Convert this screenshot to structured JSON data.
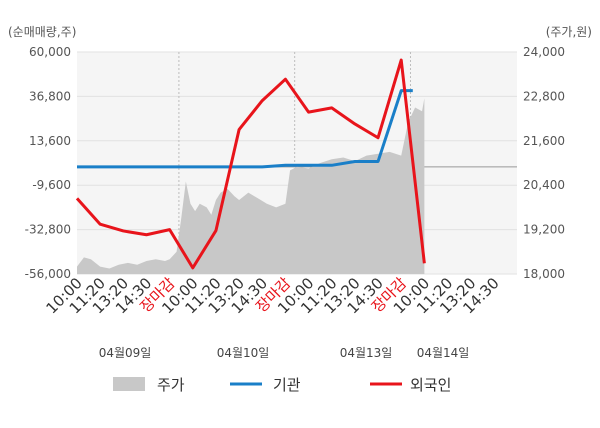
{
  "chart_data": {
    "type": "line",
    "left_axis": {
      "unit_label": "(순매매량,주)",
      "ticks": [
        "60,000",
        "36,800",
        "13,600",
        "-9,600",
        "-32,800",
        "-56,000"
      ],
      "range": [
        -56000,
        60000
      ]
    },
    "right_axis": {
      "unit_label": "(주가,원)",
      "ticks": [
        "24,000",
        "22,800",
        "21,600",
        "20,400",
        "19,200",
        "18,000"
      ],
      "range": [
        18000,
        24000
      ]
    },
    "x_labels": [
      {
        "label": "10:00",
        "close": false
      },
      {
        "label": "11:20",
        "close": false
      },
      {
        "label": "13:20",
        "close": false
      },
      {
        "label": "14:30",
        "close": false
      },
      {
        "label": "장마감",
        "close": true
      },
      {
        "label": "10:00",
        "close": false
      },
      {
        "label": "11:20",
        "close": false
      },
      {
        "label": "13:20",
        "close": false
      },
      {
        "label": "14:30",
        "close": false
      },
      {
        "label": "장마감",
        "close": true
      },
      {
        "label": "10:00",
        "close": false
      },
      {
        "label": "11:20",
        "close": false
      },
      {
        "label": "13:20",
        "close": false
      },
      {
        "label": "14:30",
        "close": false
      },
      {
        "label": "장마감",
        "close": true
      },
      {
        "label": "10:00",
        "close": false
      },
      {
        "label": "11:20",
        "close": false
      },
      {
        "label": "13:20",
        "close": false
      },
      {
        "label": "14:30",
        "close": false
      }
    ],
    "dates": [
      "04월09일",
      "04월10일",
      "04월13일",
      "04월14일"
    ],
    "legend": {
      "price": "주가",
      "institution": "기관",
      "foreign": "외국인"
    },
    "colors": {
      "price": "#c8c8c8",
      "institution": "#1a7fc8",
      "foreign": "#e8141b"
    },
    "series": [
      {
        "name": "기관",
        "values": [
          [
            0,
            0
          ],
          [
            1,
            0
          ],
          [
            2,
            0
          ],
          [
            3,
            0
          ],
          [
            4,
            0
          ],
          [
            5,
            0
          ],
          [
            6,
            0
          ],
          [
            7,
            0
          ],
          [
            8,
            0
          ],
          [
            9,
            800
          ],
          [
            10,
            800
          ],
          [
            11,
            800
          ],
          [
            12,
            2800
          ],
          [
            13,
            2800
          ],
          [
            14,
            39800
          ],
          [
            14.5,
            39800
          ]
        ]
      },
      {
        "name": "외국인",
        "values": [
          [
            0,
            -16500
          ],
          [
            1,
            -30000
          ],
          [
            2,
            -33500
          ],
          [
            3,
            -35500
          ],
          [
            4,
            -32800
          ],
          [
            5,
            -52800
          ],
          [
            6,
            -33300
          ],
          [
            7,
            19500
          ],
          [
            8,
            34600
          ],
          [
            9,
            45800
          ],
          [
            10,
            28600
          ],
          [
            11,
            30800
          ],
          [
            12,
            22400
          ],
          [
            13,
            15200
          ],
          [
            14,
            55800
          ],
          [
            15,
            -50400
          ]
        ]
      },
      {
        "name": "주가",
        "values": [
          [
            0,
            18200
          ],
          [
            0.3,
            18450
          ],
          [
            0.6,
            18400
          ],
          [
            1,
            18200
          ],
          [
            1.4,
            18150
          ],
          [
            1.8,
            18250
          ],
          [
            2.2,
            18300
          ],
          [
            2.6,
            18250
          ],
          [
            3,
            18350
          ],
          [
            3.4,
            18400
          ],
          [
            3.8,
            18350
          ],
          [
            4,
            18400
          ],
          [
            4.3,
            18600
          ],
          [
            4.5,
            19500
          ],
          [
            4.7,
            20500
          ],
          [
            4.9,
            19900
          ],
          [
            5.1,
            19700
          ],
          [
            5.3,
            19900
          ],
          [
            5.6,
            19800
          ],
          [
            5.8,
            19600
          ],
          [
            6,
            20000
          ],
          [
            6.2,
            20200
          ],
          [
            6.5,
            20300
          ],
          [
            6.8,
            20100
          ],
          [
            7,
            20000
          ],
          [
            7.4,
            20200
          ],
          [
            7.8,
            20050
          ],
          [
            8.2,
            19900
          ],
          [
            8.6,
            19800
          ],
          [
            9,
            19900
          ],
          [
            9.2,
            20800
          ],
          [
            9.5,
            20900
          ],
          [
            10,
            20850
          ],
          [
            10.5,
            21000
          ],
          [
            11,
            21100
          ],
          [
            11.5,
            21150
          ],
          [
            12,
            21050
          ],
          [
            12.5,
            21200
          ],
          [
            13,
            21250
          ],
          [
            13.5,
            21300
          ],
          [
            14,
            21200
          ],
          [
            14.3,
            22100
          ],
          [
            14.6,
            22500
          ],
          [
            14.9,
            22400
          ],
          [
            15,
            22750
          ]
        ]
      }
    ]
  }
}
